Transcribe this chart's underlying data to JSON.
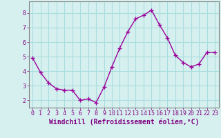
{
  "x": [
    0,
    1,
    2,
    3,
    4,
    5,
    6,
    7,
    8,
    9,
    10,
    11,
    12,
    13,
    14,
    15,
    16,
    17,
    18,
    19,
    20,
    21,
    22,
    23
  ],
  "y": [
    4.9,
    3.9,
    3.2,
    2.8,
    2.7,
    2.7,
    2.0,
    2.1,
    1.85,
    2.9,
    4.3,
    5.6,
    6.7,
    7.6,
    7.85,
    8.2,
    7.2,
    6.3,
    5.1,
    4.6,
    4.3,
    4.5,
    5.3,
    5.3
  ],
  "line_color": "#990099",
  "marker": "+",
  "marker_size": 4,
  "marker_linewidth": 1.0,
  "line_width": 1.0,
  "bg_color": "#d6f0f0",
  "grid_color": "#aadddd",
  "xlabel": "Windchill (Refroidissement éolien,°C)",
  "xlabel_color": "#800080",
  "xlabel_fontsize": 7,
  "tick_label_color": "#800080",
  "ylim": [
    1.5,
    8.8
  ],
  "xlim": [
    -0.5,
    23.5
  ],
  "yticks": [
    2,
    3,
    4,
    5,
    6,
    7,
    8
  ],
  "xticks": [
    0,
    1,
    2,
    3,
    4,
    5,
    6,
    7,
    8,
    9,
    10,
    11,
    12,
    13,
    14,
    15,
    16,
    17,
    18,
    19,
    20,
    21,
    22,
    23
  ],
  "tick_fontsize": 6,
  "spine_color": "#808080"
}
